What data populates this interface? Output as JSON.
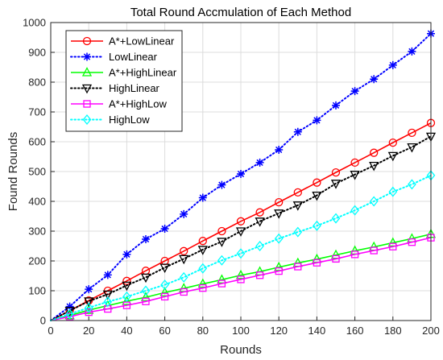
{
  "chart_data": {
    "type": "line",
    "title": "Total Round Accmulation of Each Method",
    "xlabel": "Rounds",
    "ylabel": "Found Rounds",
    "xlim": [
      0,
      200
    ],
    "ylim": [
      0,
      1000
    ],
    "xticks": [
      0,
      20,
      40,
      60,
      80,
      100,
      120,
      140,
      160,
      180,
      200
    ],
    "yticks": [
      0,
      100,
      200,
      300,
      400,
      500,
      600,
      700,
      800,
      900,
      1000
    ],
    "grid": true,
    "legend_position": "top-left",
    "x": [
      0,
      10,
      20,
      30,
      40,
      50,
      60,
      70,
      80,
      90,
      100,
      110,
      120,
      130,
      140,
      150,
      160,
      170,
      180,
      190,
      200
    ],
    "series": [
      {
        "name": "A*+LowLinear",
        "color": "#ff0000",
        "line": "solid",
        "marker": "circle",
        "values": [
          0,
          33,
          67,
          100,
          133,
          167,
          200,
          233,
          267,
          300,
          333,
          363,
          397,
          430,
          463,
          497,
          530,
          563,
          597,
          630,
          663
        ]
      },
      {
        "name": "LowLinear",
        "color": "#0000ff",
        "line": "dotted",
        "marker": "asterisk",
        "values": [
          0,
          47,
          105,
          153,
          222,
          273,
          308,
          357,
          412,
          455,
          492,
          530,
          573,
          633,
          672,
          722,
          770,
          810,
          857,
          903,
          963
        ]
      },
      {
        "name": "A*+HighLinear",
        "color": "#00ff00",
        "line": "solid",
        "marker": "triangle-up",
        "values": [
          0,
          17,
          35,
          50,
          65,
          78,
          94,
          108,
          123,
          137,
          152,
          164,
          179,
          193,
          206,
          220,
          234,
          247,
          261,
          275,
          290
        ]
      },
      {
        "name": "HighLinear",
        "color": "#000000",
        "line": "dotted",
        "marker": "triangle-down",
        "values": [
          0,
          33,
          65,
          88,
          118,
          145,
          178,
          207,
          238,
          265,
          300,
          333,
          360,
          387,
          420,
          460,
          490,
          520,
          553,
          582,
          618
        ]
      },
      {
        "name": "A*+HighLow",
        "color": "#ff00ff",
        "line": "solid",
        "marker": "square",
        "values": [
          0,
          13,
          28,
          39,
          51,
          64,
          80,
          96,
          109,
          124,
          138,
          152,
          166,
          181,
          194,
          207,
          222,
          235,
          248,
          263,
          278
        ]
      },
      {
        "name": "HighLow",
        "color": "#00ffff",
        "line": "dotted",
        "marker": "diamond",
        "values": [
          0,
          22,
          43,
          63,
          80,
          100,
          120,
          145,
          175,
          202,
          225,
          250,
          275,
          297,
          318,
          343,
          370,
          400,
          432,
          457,
          487
        ]
      }
    ]
  }
}
